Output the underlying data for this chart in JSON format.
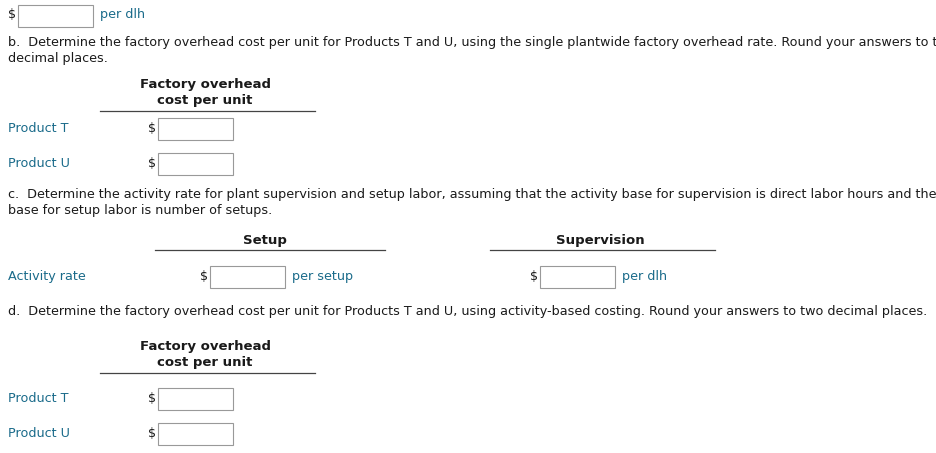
{
  "bg_color": "#ffffff",
  "dark": "#1a1a1a",
  "blue": "#1a6b8a",
  "line_color": "#444444",
  "top_line": "per dlh",
  "section_b_text1": "b.  Determine the factory overhead cost per unit for Products T and U, using the single plantwide factory overhead rate. Round your answers to two",
  "section_b_text2": "decimal places.",
  "section_b_header1": "Factory overhead",
  "section_b_header2": "cost per unit",
  "section_b_rows": [
    "Product T",
    "Product U"
  ],
  "section_c_text1": "c.  Determine the activity rate for plant supervision and setup labor, assuming that the activity base for supervision is direct labor hours and the activity",
  "section_c_text2": "base for setup labor is number of setups.",
  "section_c_col1": "Setup",
  "section_c_col2": "Supervision",
  "section_c_row_label": "Activity rate",
  "section_c_suffix1": "per setup",
  "section_c_suffix2": "per dlh",
  "section_d_text": "d.  Determine the factory overhead cost per unit for Products T and U, using activity-based costing. Round your answers to two decimal places.",
  "section_d_header1": "Factory overhead",
  "section_d_header2": "cost per unit",
  "section_d_rows": [
    "Product T",
    "Product U"
  ],
  "fs_body": 9.2,
  "fs_bold": 9.5
}
